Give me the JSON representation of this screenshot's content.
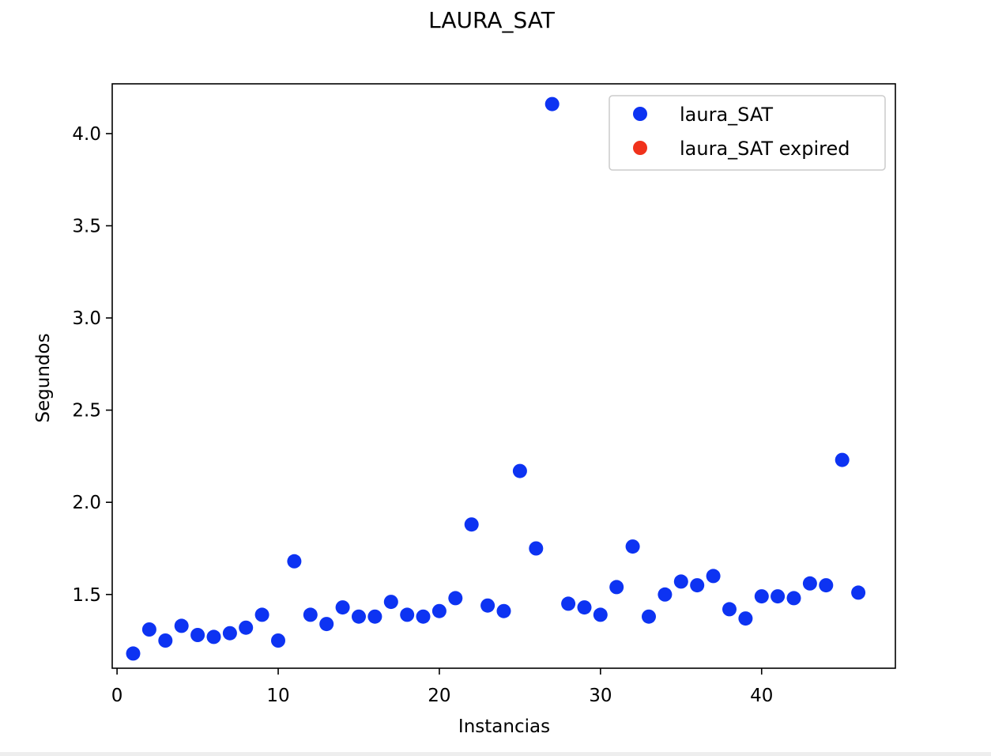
{
  "chart_data": {
    "type": "scatter",
    "title": "LAURA_SAT",
    "xlabel": "Instancias",
    "ylabel": "Segundos",
    "xlim": [
      -0.3,
      48.3
    ],
    "ylim": [
      1.1,
      4.27
    ],
    "xticks": [
      0,
      10,
      20,
      30,
      40
    ],
    "yticks": [
      1.5,
      2.0,
      2.5,
      3.0,
      3.5,
      4.0
    ],
    "xtick_labels": [
      "0",
      "10",
      "20",
      "30",
      "40"
    ],
    "ytick_labels": [
      "1.5",
      "2.0",
      "2.5",
      "3.0",
      "3.5",
      "4.0"
    ],
    "grid": false,
    "legend_position": "top-right",
    "series": [
      {
        "name": "laura_SAT",
        "color": "#0d33f2",
        "x": [
          1,
          2,
          3,
          4,
          5,
          6,
          7,
          8,
          9,
          10,
          11,
          12,
          13,
          14,
          15,
          16,
          17,
          18,
          19,
          20,
          21,
          22,
          23,
          24,
          25,
          26,
          27,
          28,
          29,
          30,
          31,
          32,
          33,
          34,
          35,
          36,
          37,
          38,
          39,
          40,
          41,
          42,
          43,
          44,
          45,
          46
        ],
        "y": [
          1.18,
          1.31,
          1.25,
          1.33,
          1.28,
          1.27,
          1.29,
          1.32,
          1.39,
          1.25,
          1.68,
          1.39,
          1.34,
          1.43,
          1.38,
          1.38,
          1.46,
          1.39,
          1.38,
          1.41,
          1.48,
          1.88,
          1.44,
          1.41,
          2.17,
          1.75,
          4.16,
          1.45,
          1.43,
          1.39,
          1.54,
          1.76,
          1.38,
          1.5,
          1.57,
          1.55,
          1.6,
          1.42,
          1.37,
          1.49,
          1.49,
          1.48,
          1.56,
          1.55,
          2.23,
          1.51
        ]
      },
      {
        "name": "laura_SAT expired",
        "color": "#f0321c",
        "x": [],
        "y": []
      }
    ]
  }
}
